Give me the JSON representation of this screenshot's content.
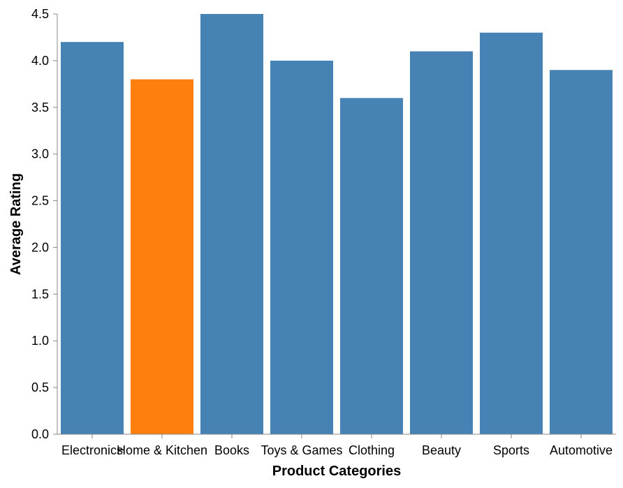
{
  "chart_data": {
    "type": "bar",
    "title": "",
    "xlabel": "Product Categories",
    "ylabel": "Average Rating",
    "categories": [
      "Electronics",
      "Home & Kitchen",
      "Books",
      "Toys & Games",
      "Clothing",
      "Beauty",
      "Sports",
      "Automotive"
    ],
    "values": [
      4.2,
      3.8,
      4.5,
      4.0,
      3.6,
      4.1,
      4.3,
      3.9
    ],
    "ylim": [
      0,
      4.5
    ],
    "yticks": [
      "0.0",
      "0.5",
      "1.0",
      "1.5",
      "2.0",
      "2.5",
      "3.0",
      "3.5",
      "4.0",
      "4.5"
    ],
    "grid": false,
    "legend": "none",
    "highlighted_category": "Home & Kitchen",
    "colors": {
      "bar": "#4682b4",
      "highlight": "#ff7f0e",
      "axis": "#888888"
    }
  }
}
